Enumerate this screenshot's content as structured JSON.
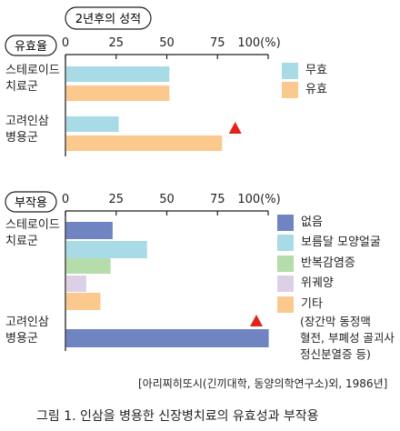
{
  "header_pill": "2년후의 성적",
  "charts": [
    {
      "label": "유효율",
      "groups": [
        "스테로이드\n치료군",
        "고려인삼\n병용군"
      ],
      "series": [
        {
          "name": "무효",
          "color": "#a9dbe6",
          "values": [
            51,
            26
          ]
        },
        {
          "name": "유효",
          "color": "#fbc98e",
          "values": [
            51,
            77
          ]
        }
      ],
      "xlim": [
        0,
        100
      ],
      "ticks": [
        "0",
        "25",
        "50",
        "75",
        "100(%)"
      ],
      "marker_group": 1
    },
    {
      "label": "부작용",
      "groups": [
        "스테로이드\n치료군",
        "고려인삼\n병용군"
      ],
      "series": [
        {
          "name": "없음",
          "color": "#6f84c1",
          "values": [
            null,
            100
          ]
        },
        {
          "name": "보름달 모양얼굴",
          "color": "#a9dbe6",
          "values": [
            40,
            null
          ]
        },
        {
          "name": "반복감염증",
          "color": "#b5dcab",
          "values": [
            22,
            null
          ]
        },
        {
          "name": "위궤양",
          "color": "#ddd0e6",
          "values": [
            10,
            null
          ]
        },
        {
          "name": "기타",
          "color": "#fbc98e",
          "values": [
            17,
            null
          ]
        }
      ],
      "first_bar_value": 23,
      "xlim": [
        0,
        100
      ],
      "ticks": [
        "0",
        "25",
        "50",
        "75",
        "100(%)"
      ],
      "marker_group": 1,
      "note": "(장간막 동정맥\n혈전, 부폐성 골괴사\n정신분열증 등)"
    }
  ],
  "source": "[아리찌히또시(긴끼대학, 동양의학연구소)외, 1986년]",
  "caption": "그림 1. 인삼을 병용한 신장병치료의 유효성과 부작용",
  "marker_color": "#e2231a",
  "axis_color": "#231f20"
}
